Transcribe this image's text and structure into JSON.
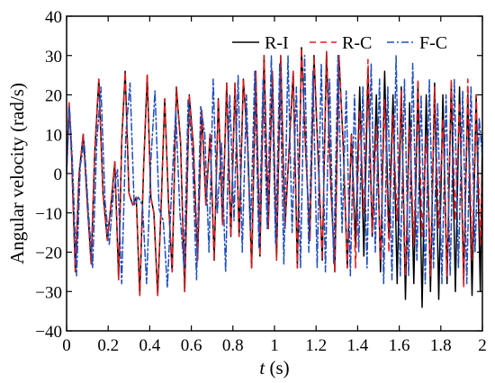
{
  "chart_data": {
    "type": "line",
    "title": "",
    "xlabel": "t (s)",
    "xlabel_var": "t",
    "xlabel_unit": " (s)",
    "ylabel": "Angular velocity (rad/s)",
    "xlim": [
      0,
      2
    ],
    "ylim": [
      -40,
      40
    ],
    "xticks": [
      "0",
      "0.2",
      "0.4",
      "0.6",
      "0.8",
      "1",
      "1.2",
      "1.4",
      "1.6",
      "1.8",
      "2"
    ],
    "yticks": [
      "−40",
      "−30",
      "−20",
      "−10",
      "0",
      "10",
      "20",
      "30",
      "40"
    ],
    "grid": false,
    "legend_position": "top-right",
    "series": [
      {
        "name": "R-I",
        "color": "#000000",
        "dash": "solid",
        "x": [
          0,
          0.012,
          0.024,
          0.042,
          0.06,
          0.08,
          0.1,
          0.118,
          0.135,
          0.155,
          0.175,
          0.196,
          0.215,
          0.232,
          0.25,
          0.265,
          0.282,
          0.3,
          0.318,
          0.335,
          0.352,
          0.37,
          0.388,
          0.405,
          0.42,
          0.438,
          0.455,
          0.472,
          0.49,
          0.508,
          0.528,
          0.548,
          0.568,
          0.59,
          0.61,
          0.63,
          0.65,
          0.67,
          0.69,
          0.71,
          0.73,
          0.75,
          0.77,
          0.79,
          0.81,
          0.83,
          0.85,
          0.87,
          0.89,
          0.91,
          0.93,
          0.95,
          0.97,
          0.99,
          1.01,
          1.03,
          1.05,
          1.07,
          1.09,
          1.11,
          1.13,
          1.15,
          1.17,
          1.19,
          1.21,
          1.23,
          1.25,
          1.27,
          1.29,
          1.31,
          1.33,
          1.35,
          1.37,
          1.39,
          1.41,
          1.43,
          1.45,
          1.47,
          1.49,
          1.51,
          1.53,
          1.55,
          1.57,
          1.59,
          1.61,
          1.63,
          1.65,
          1.67,
          1.69,
          1.71,
          1.73,
          1.75,
          1.77,
          1.79,
          1.81,
          1.83,
          1.85,
          1.87,
          1.89,
          1.91,
          1.93,
          1.95,
          1.97,
          1.99,
          2.0
        ],
        "y": [
          0,
          18,
          5,
          -25,
          0,
          10,
          -8,
          -23,
          5,
          24,
          -5,
          -17,
          -7,
          3,
          -27,
          8,
          26,
          -5,
          -8,
          -6,
          -31,
          1,
          25,
          -6,
          -10,
          -31,
          -8,
          19,
          -7,
          -25,
          22,
          8,
          -30,
          20,
          7,
          -22,
          16,
          -8,
          10,
          -22,
          19,
          -13,
          23,
          -16,
          23,
          -16,
          24,
          8,
          -24,
          26,
          -21,
          30,
          -14,
          26,
          -22,
          30,
          -14,
          6,
          26,
          -24,
          32,
          6,
          -17,
          30,
          4,
          -22,
          31,
          -2,
          -25,
          30,
          8,
          -24,
          10,
          -18,
          22,
          -21,
          26,
          -16,
          20,
          -25,
          26,
          -16,
          20,
          -28,
          22,
          -32,
          18,
          -28,
          23,
          -34,
          20,
          -30,
          23,
          -32,
          20,
          -28,
          23,
          -30,
          22,
          -27,
          20,
          -31,
          20,
          -30,
          10
        ]
      },
      {
        "name": "R-C",
        "color": "#e41a1c",
        "dash": "7,5",
        "x": [
          0,
          0.012,
          0.024,
          0.042,
          0.06,
          0.08,
          0.1,
          0.118,
          0.135,
          0.155,
          0.175,
          0.196,
          0.215,
          0.232,
          0.25,
          0.265,
          0.282,
          0.3,
          0.318,
          0.335,
          0.352,
          0.37,
          0.388,
          0.405,
          0.42,
          0.438,
          0.455,
          0.472,
          0.49,
          0.508,
          0.528,
          0.548,
          0.568,
          0.59,
          0.61,
          0.63,
          0.65,
          0.67,
          0.69,
          0.71,
          0.73,
          0.75,
          0.77,
          0.79,
          0.81,
          0.83,
          0.85,
          0.87,
          0.89,
          0.91,
          0.93,
          0.95,
          0.97,
          0.99,
          1.01,
          1.03,
          1.05,
          1.07,
          1.09,
          1.11,
          1.13,
          1.15,
          1.17,
          1.19,
          1.21,
          1.23,
          1.25,
          1.27,
          1.29,
          1.31,
          1.33,
          1.35,
          1.37,
          1.39,
          1.41,
          1.43,
          1.45,
          1.47,
          1.49,
          1.51,
          1.53,
          1.55,
          1.57,
          1.59,
          1.61,
          1.63,
          1.65,
          1.67,
          1.69,
          1.71,
          1.73,
          1.75,
          1.77,
          1.79,
          1.81,
          1.83,
          1.85,
          1.87,
          1.89,
          1.91,
          1.93,
          1.95,
          1.97,
          1.99,
          2.0
        ],
        "y": [
          0,
          18,
          5,
          -25,
          0,
          10,
          -8,
          -23,
          5,
          24,
          -5,
          -17,
          -7,
          3,
          -27,
          8,
          26,
          -5,
          -8,
          -6,
          -31,
          1,
          25,
          -6,
          -10,
          -31,
          -8,
          19,
          -7,
          -25,
          22,
          8,
          -30,
          20,
          7,
          -22,
          16,
          -8,
          10,
          -22,
          19,
          -13,
          23,
          -16,
          23,
          -16,
          24,
          8,
          -24,
          26,
          -21,
          30,
          -14,
          26,
          -22,
          30,
          -14,
          6,
          26,
          -24,
          32,
          6,
          -17,
          30,
          4,
          -22,
          31,
          -2,
          -25,
          30,
          8,
          -24,
          10,
          -24,
          16,
          -10,
          29,
          -15,
          12,
          -22,
          19,
          -20,
          15,
          -12,
          21,
          -26,
          12,
          -18,
          24,
          -16,
          10,
          -26,
          22,
          -14,
          14,
          -26,
          24,
          -12,
          18,
          -29,
          24,
          -22,
          20,
          -18,
          0
        ]
      },
      {
        "name": "F-C",
        "color": "#1f4fbf",
        "dash": "8,3,2,3",
        "x": [
          0,
          0.014,
          0.028,
          0.048,
          0.066,
          0.085,
          0.105,
          0.125,
          0.145,
          0.165,
          0.185,
          0.205,
          0.225,
          0.245,
          0.265,
          0.285,
          0.305,
          0.325,
          0.345,
          0.365,
          0.385,
          0.405,
          0.425,
          0.445,
          0.465,
          0.485,
          0.505,
          0.525,
          0.545,
          0.565,
          0.585,
          0.605,
          0.625,
          0.645,
          0.665,
          0.685,
          0.705,
          0.725,
          0.745,
          0.765,
          0.785,
          0.805,
          0.825,
          0.845,
          0.865,
          0.885,
          0.905,
          0.925,
          0.945,
          0.965,
          0.985,
          1.005,
          1.025,
          1.045,
          1.065,
          1.085,
          1.105,
          1.125,
          1.145,
          1.165,
          1.185,
          1.205,
          1.225,
          1.245,
          1.265,
          1.285,
          1.305,
          1.325,
          1.345,
          1.365,
          1.385,
          1.405,
          1.425,
          1.445,
          1.465,
          1.485,
          1.505,
          1.525,
          1.545,
          1.565,
          1.585,
          1.605,
          1.625,
          1.645,
          1.665,
          1.685,
          1.705,
          1.725,
          1.745,
          1.765,
          1.785,
          1.805,
          1.825,
          1.845,
          1.865,
          1.885,
          1.905,
          1.925,
          1.945,
          1.965,
          1.985,
          2.0
        ],
        "y": [
          0,
          17,
          3,
          -26,
          2,
          8,
          -10,
          -24,
          8,
          22,
          -7,
          -18,
          -5,
          1,
          -28,
          10,
          23,
          -8,
          -6,
          -8,
          -28,
          3,
          21,
          -9,
          -12,
          -29,
          -4,
          16,
          -10,
          -24,
          19,
          5,
          -27,
          17,
          10,
          -20,
          24,
          -10,
          8,
          -25,
          20,
          -12,
          25,
          -20,
          20,
          -14,
          26,
          -19,
          24,
          -14,
          30,
          -18,
          28,
          -23,
          30,
          -15,
          22,
          -24,
          30,
          -20,
          26,
          -24,
          28,
          -25,
          24,
          -23,
          30,
          -15,
          21,
          -26,
          20,
          -20,
          22,
          -24,
          28,
          -20,
          24,
          -28,
          22,
          -27,
          30,
          -26,
          24,
          -26,
          28,
          -22,
          20,
          -28,
          24,
          -24,
          18,
          -28,
          20,
          -26,
          24,
          -24,
          21,
          -28,
          22,
          -20,
          14,
          4
        ]
      }
    ]
  }
}
